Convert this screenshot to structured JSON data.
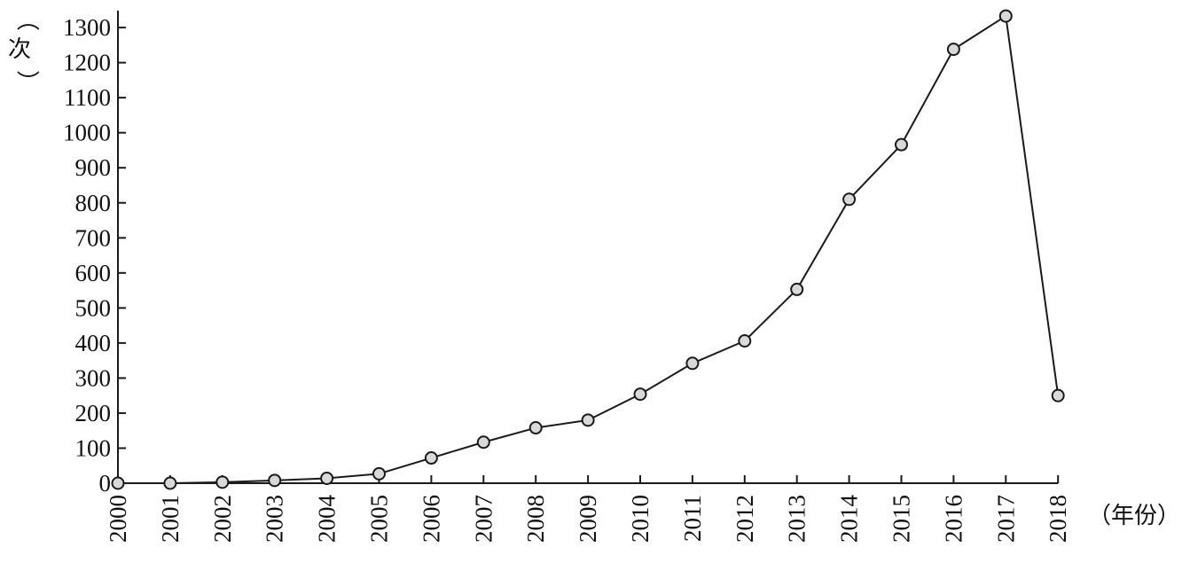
{
  "chart_data": {
    "type": "line",
    "title": "",
    "xlabel": "（年份）",
    "ylabel_paren_open": "（",
    "ylabel_text": "次",
    "ylabel_paren_close": "）",
    "ylim": [
      0,
      1300
    ],
    "yticks": [
      0,
      100,
      200,
      300,
      400,
      500,
      600,
      700,
      800,
      900,
      1000,
      1100,
      1200,
      1300
    ],
    "x": [
      "2000",
      "2001",
      "2002",
      "2003",
      "2004",
      "2005",
      "2006",
      "2007",
      "2008",
      "2009",
      "2010",
      "2011",
      "2012",
      "2013",
      "2014",
      "2015",
      "2016",
      "2017",
      "2018"
    ],
    "series": [
      {
        "values": [
          0,
          0,
          3,
          8,
          14,
          27,
          72,
          117,
          158,
          180,
          254,
          342,
          406,
          553,
          810,
          966,
          1238,
          1333,
          250
        ]
      }
    ],
    "grid": false,
    "legend": "none",
    "colors": {
      "line": "#1a1a1a",
      "marker_fill": "#d9d9d9",
      "marker_stroke": "#1a1a1a",
      "axis": "#1a1a1a",
      "text": "#111111"
    }
  }
}
